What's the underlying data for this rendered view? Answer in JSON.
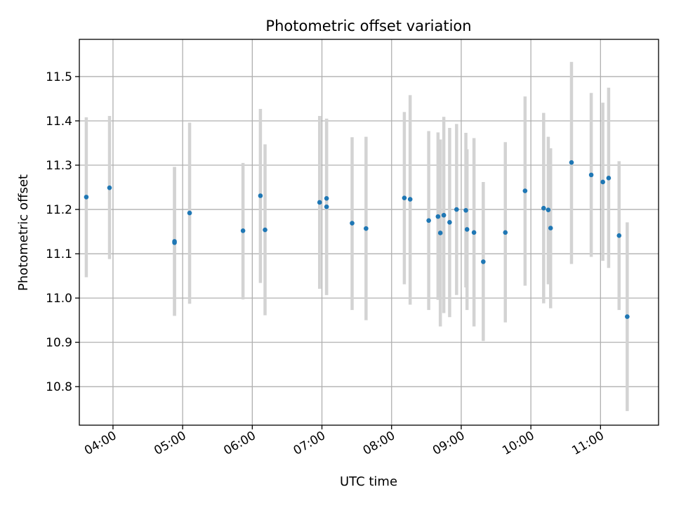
{
  "chart_data": {
    "type": "scatter",
    "title": "Photometric offset variation",
    "xlabel": "UTC time",
    "ylabel": "Photometric offset",
    "xlim": [
      "03:31",
      "11:50"
    ],
    "ylim": [
      10.713,
      11.584
    ],
    "grid": true,
    "x_ticks": [
      "04:00",
      "05:00",
      "06:00",
      "07:00",
      "08:00",
      "09:00",
      "10:00",
      "11:00"
    ],
    "y_ticks": [
      "10.8",
      "10.9",
      "11.0",
      "11.1",
      "11.2",
      "11.3",
      "11.4",
      "11.5"
    ],
    "colors": {
      "point": "#1f77b4",
      "errorbar": "#d3d3d3"
    },
    "series": [
      {
        "points": [
          {
            "x": "03:37",
            "y": 11.228,
            "ylo": 11.047,
            "yhi": 11.408
          },
          {
            "x": "03:57",
            "y": 11.249,
            "ylo": 11.088,
            "yhi": 11.411
          },
          {
            "x": "04:53",
            "y": 11.125,
            "ylo": 10.96,
            "yhi": 11.296
          },
          {
            "x": "04:53",
            "y": 11.128,
            "ylo": 10.96,
            "yhi": 11.296
          },
          {
            "x": "05:06",
            "y": 11.192,
            "ylo": 10.987,
            "yhi": 11.396
          },
          {
            "x": "05:52",
            "y": 11.152,
            "ylo": 10.997,
            "yhi": 11.305
          },
          {
            "x": "06:07",
            "y": 11.231,
            "ylo": 11.034,
            "yhi": 11.427
          },
          {
            "x": "06:11",
            "y": 11.154,
            "ylo": 10.961,
            "yhi": 11.347
          },
          {
            "x": "06:58",
            "y": 11.216,
            "ylo": 11.021,
            "yhi": 11.411
          },
          {
            "x": "07:04",
            "y": 11.225,
            "ylo": 11.007,
            "yhi": 11.405
          },
          {
            "x": "07:04",
            "y": 11.206,
            "ylo": 11.007,
            "yhi": 11.405
          },
          {
            "x": "07:26",
            "y": 11.169,
            "ylo": 10.973,
            "yhi": 11.363
          },
          {
            "x": "07:38",
            "y": 11.157,
            "ylo": 10.95,
            "yhi": 11.364
          },
          {
            "x": "08:11",
            "y": 11.226,
            "ylo": 11.031,
            "yhi": 11.42
          },
          {
            "x": "08:16",
            "y": 11.223,
            "ylo": 10.985,
            "yhi": 11.458
          },
          {
            "x": "08:32",
            "y": 11.175,
            "ylo": 10.973,
            "yhi": 11.377
          },
          {
            "x": "08:40",
            "y": 11.184,
            "ylo": 10.996,
            "yhi": 11.374
          },
          {
            "x": "08:42",
            "y": 11.147,
            "ylo": 10.936,
            "yhi": 11.358
          },
          {
            "x": "08:45",
            "y": 11.187,
            "ylo": 10.966,
            "yhi": 11.409
          },
          {
            "x": "08:50",
            "y": 11.171,
            "ylo": 10.957,
            "yhi": 11.384
          },
          {
            "x": "08:56",
            "y": 11.2,
            "ylo": 11.007,
            "yhi": 11.393
          },
          {
            "x": "09:04",
            "y": 11.198,
            "ylo": 11.024,
            "yhi": 11.373
          },
          {
            "x": "09:05",
            "y": 11.155,
            "ylo": 10.973,
            "yhi": 11.336
          },
          {
            "x": "09:11",
            "y": 11.148,
            "ylo": 10.936,
            "yhi": 11.361
          },
          {
            "x": "09:19",
            "y": 11.082,
            "ylo": 10.903,
            "yhi": 11.262
          },
          {
            "x": "09:38",
            "y": 11.148,
            "ylo": 10.945,
            "yhi": 11.352
          },
          {
            "x": "09:55",
            "y": 11.242,
            "ylo": 11.028,
            "yhi": 11.455
          },
          {
            "x": "10:11",
            "y": 11.203,
            "ylo": 10.988,
            "yhi": 11.418
          },
          {
            "x": "10:15",
            "y": 11.199,
            "ylo": 11.031,
            "yhi": 11.364
          },
          {
            "x": "10:17",
            "y": 11.158,
            "ylo": 10.977,
            "yhi": 11.338
          },
          {
            "x": "10:35",
            "y": 11.306,
            "ylo": 11.077,
            "yhi": 11.533
          },
          {
            "x": "10:52",
            "y": 11.278,
            "ylo": 11.093,
            "yhi": 11.463
          },
          {
            "x": "11:02",
            "y": 11.262,
            "ylo": 11.084,
            "yhi": 11.441
          },
          {
            "x": "11:07",
            "y": 11.271,
            "ylo": 11.068,
            "yhi": 11.475
          },
          {
            "x": "11:16",
            "y": 11.141,
            "ylo": 10.973,
            "yhi": 11.309
          },
          {
            "x": "11:23",
            "y": 10.958,
            "ylo": 10.745,
            "yhi": 11.171
          }
        ]
      }
    ]
  }
}
